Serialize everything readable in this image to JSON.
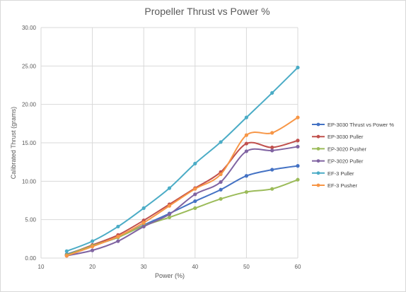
{
  "chart_data": {
    "type": "line",
    "title": "Propeller Thrust vs Power %",
    "xlabel": "Power (%)",
    "ylabel": "Calibrated Thrust (grams)",
    "xlim": [
      10,
      60
    ],
    "ylim": [
      0,
      30
    ],
    "x_ticks": [
      10,
      20,
      30,
      40,
      50,
      60
    ],
    "y_ticks": [
      "0.00",
      "5.00",
      "10.00",
      "15.00",
      "20.00",
      "25.00",
      "30.00"
    ],
    "grid": "on",
    "legend_position": "right",
    "x": [
      15,
      20,
      25,
      30,
      35,
      40,
      45,
      50,
      55,
      60
    ],
    "series": [
      {
        "name": "EP-3030 Thrust vs Power %",
        "color": "#4472c4",
        "values": [
          0.5,
          1.6,
          2.7,
          4.3,
          5.8,
          7.4,
          8.9,
          10.7,
          11.5,
          12.0
        ]
      },
      {
        "name": "EP-3030 Puller",
        "color": "#c0504d",
        "values": [
          0.4,
          1.7,
          3.0,
          4.9,
          7.0,
          9.1,
          11.2,
          14.9,
          14.4,
          15.3
        ]
      },
      {
        "name": "EP-3020 Pusher",
        "color": "#9bbb59",
        "values": [
          0.4,
          1.6,
          2.7,
          4.2,
          5.3,
          6.5,
          7.7,
          8.6,
          9.0,
          10.2
        ]
      },
      {
        "name": "EP-3020 Puller",
        "color": "#8064a2",
        "values": [
          0.3,
          1.0,
          2.2,
          4.1,
          5.7,
          8.3,
          9.9,
          13.9,
          14.0,
          14.5
        ]
      },
      {
        "name": "EF-3 Puller",
        "color": "#4bacc6",
        "values": [
          0.9,
          2.2,
          4.1,
          6.5,
          9.1,
          12.3,
          15.1,
          18.3,
          21.5,
          24.8
        ]
      },
      {
        "name": "EF-3 Pusher",
        "color": "#f79646",
        "values": [
          0.3,
          1.5,
          2.8,
          4.6,
          6.8,
          9.0,
          10.9,
          16.0,
          16.3,
          18.3
        ]
      }
    ]
  }
}
